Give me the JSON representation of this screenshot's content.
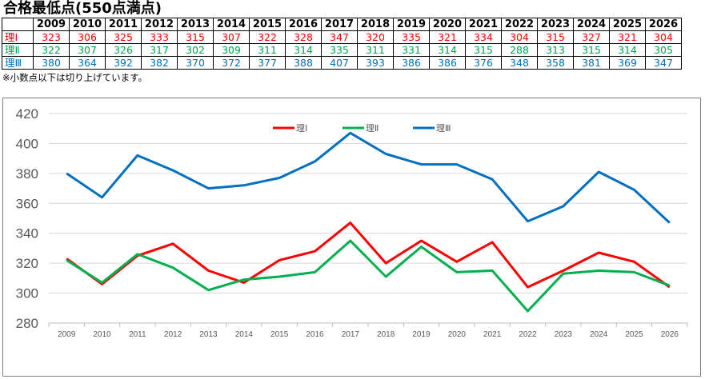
{
  "title": "合格最低点(550点満点)",
  "note": "※小数点以下は切り上げています。",
  "table": {
    "years": [
      "2009",
      "2010",
      "2011",
      "2012",
      "2013",
      "2014",
      "2015",
      "2016",
      "2017",
      "2018",
      "2019",
      "2020",
      "2021",
      "2022",
      "2023",
      "2024",
      "2025",
      "2026"
    ],
    "rows": [
      {
        "label": "理Ⅰ",
        "color": "#ff0000",
        "values": [
          "323",
          "306",
          "325",
          "333",
          "315",
          "307",
          "322",
          "328",
          "347",
          "320",
          "335",
          "321",
          "334",
          "304",
          "315",
          "327",
          "321",
          "304"
        ]
      },
      {
        "label": "理Ⅱ",
        "color": "#00a550",
        "values": [
          "322",
          "307",
          "326",
          "317",
          "302",
          "309",
          "311",
          "314",
          "335",
          "311",
          "331",
          "314",
          "315",
          "288",
          "313",
          "315",
          "314",
          "305"
        ]
      },
      {
        "label": "理Ⅲ",
        "color": "#0070c0",
        "values": [
          "380",
          "364",
          "392",
          "382",
          "370",
          "372",
          "377",
          "388",
          "407",
          "393",
          "386",
          "386",
          "376",
          "348",
          "358",
          "381",
          "369",
          "347"
        ]
      }
    ]
  },
  "chart_data": {
    "type": "line",
    "title": "",
    "xlabel": "",
    "ylabel": "",
    "x": [
      "2009",
      "2010",
      "2011",
      "2012",
      "2013",
      "2014",
      "2015",
      "2016",
      "2017",
      "2018",
      "2019",
      "2020",
      "2021",
      "2022",
      "2023",
      "2024",
      "2025",
      "2026"
    ],
    "ylim": [
      280,
      420
    ],
    "yticks": [
      280,
      300,
      320,
      340,
      360,
      380,
      400,
      420
    ],
    "grid": true,
    "legend_position": "top-center",
    "series": [
      {
        "name": "理Ⅰ",
        "color": "#ff0000",
        "values": [
          323,
          306,
          325,
          333,
          315,
          307,
          322,
          328,
          347,
          320,
          335,
          321,
          334,
          304,
          315,
          327,
          321,
          304
        ]
      },
      {
        "name": "理Ⅱ",
        "color": "#00b050",
        "values": [
          322,
          307,
          326,
          317,
          302,
          309,
          311,
          314,
          335,
          311,
          331,
          314,
          315,
          288,
          313,
          315,
          314,
          305
        ]
      },
      {
        "name": "理Ⅲ",
        "color": "#0070c0",
        "values": [
          380,
          364,
          392,
          382,
          370,
          372,
          377,
          388,
          407,
          393,
          386,
          386,
          376,
          348,
          358,
          381,
          369,
          347
        ]
      }
    ]
  }
}
